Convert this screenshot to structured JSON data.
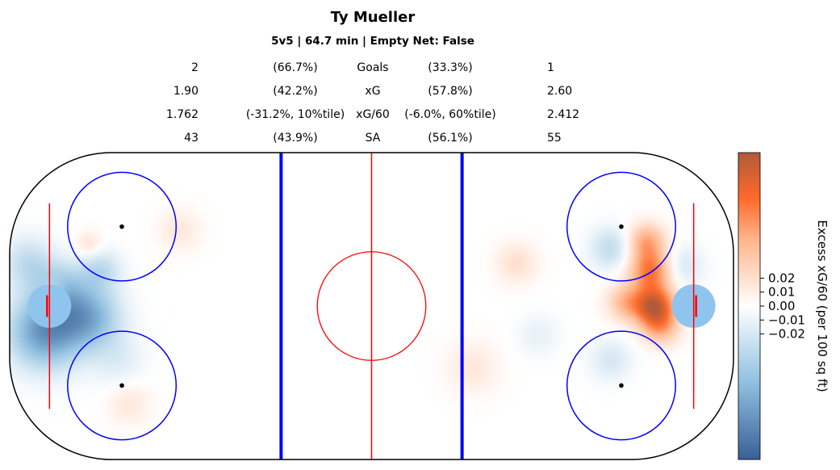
{
  "chart_data": {
    "type": "heatmap",
    "title": "Ty Mueller",
    "subtitle": "5v5 | 64.7 min | Empty Net: False",
    "stats_table": [
      {
        "label": "Goals",
        "left_value": "2",
        "left_pct": "(66.7%)",
        "right_pct": "(33.3%)",
        "right_value": "1"
      },
      {
        "label": "xG",
        "left_value": "1.90",
        "left_pct": "(42.2%)",
        "right_pct": "(57.8%)",
        "right_value": "2.60"
      },
      {
        "label": "xG/60",
        "left_value": "1.762",
        "left_pct": "(-31.2%, 10%tile)",
        "right_pct": "(-6.0%, 60%tile)",
        "right_value": "2.412"
      },
      {
        "label": "SA",
        "left_value": "43",
        "left_pct": "(43.9%)",
        "right_pct": "(56.1%)",
        "right_value": "55"
      }
    ],
    "colorbar": {
      "label": "Excess xG/60 (per 100 sq ft)",
      "ticks": [
        "0.02",
        "0.01",
        "0.00",
        "−0.01",
        "−0.02"
      ],
      "tick_values": [
        0.02,
        0.01,
        0.0,
        -0.01,
        -0.02
      ],
      "range": [
        -0.11,
        0.11
      ],
      "low_color": "#3a5f95",
      "mid_color": "#ffffff",
      "high_color": "#b05a3a",
      "bright_high_color": "#ff6a2a"
    },
    "rink": {
      "length_ft": 200,
      "width_ft": 85,
      "board_color": "#000000",
      "red_line_color": "#ff0000",
      "blue_line_color": "#0000ff",
      "circle_color": "#0000ff",
      "crease_color": "#8fc4ee"
    },
    "hotspots": [
      {
        "x": 10,
        "y": -7,
        "sigma": 7,
        "value": -0.08
      },
      {
        "x": 22,
        "y": -3,
        "sigma": 6,
        "value": -0.06
      },
      {
        "x": 14,
        "y": 5,
        "sigma": 5,
        "value": -0.04
      },
      {
        "x": 25,
        "y": 10,
        "sigma": 4,
        "value": -0.03
      },
      {
        "x": 5,
        "y": 12,
        "sigma": 5,
        "value": -0.03
      },
      {
        "x": 30,
        "y": -15,
        "sigma": 5,
        "value": -0.015
      },
      {
        "x": 12,
        "y": 4,
        "sigma": 2.5,
        "value": 0.03
      },
      {
        "x": 22,
        "y": 17,
        "sigma": 2.5,
        "value": 0.02
      },
      {
        "x": 47,
        "y": 21,
        "sigma": 4,
        "value": 0.015
      },
      {
        "x": 33,
        "y": -27,
        "sigma": 4,
        "value": 0.015
      },
      {
        "x": 178,
        "y": 0,
        "sigma": 4,
        "value": 0.1
      },
      {
        "x": 177,
        "y": 10,
        "sigma": 4,
        "value": 0.07
      },
      {
        "x": 176,
        "y": 18,
        "sigma": 3.5,
        "value": 0.05
      },
      {
        "x": 170,
        "y": 1,
        "sigma": 3.5,
        "value": 0.04
      },
      {
        "x": 180,
        "y": -6,
        "sigma": 3.5,
        "value": 0.04
      },
      {
        "x": 140,
        "y": 12,
        "sigma": 4,
        "value": 0.02
      },
      {
        "x": 128,
        "y": -17,
        "sigma": 5,
        "value": 0.015
      },
      {
        "x": 166,
        "y": 16,
        "sigma": 4,
        "value": -0.03
      },
      {
        "x": 186,
        "y": 11,
        "sigma": 4,
        "value": -0.02
      },
      {
        "x": 166,
        "y": -15,
        "sigma": 4,
        "value": -0.02
      },
      {
        "x": 146,
        "y": -8,
        "sigma": 4,
        "value": -0.012
      }
    ]
  }
}
